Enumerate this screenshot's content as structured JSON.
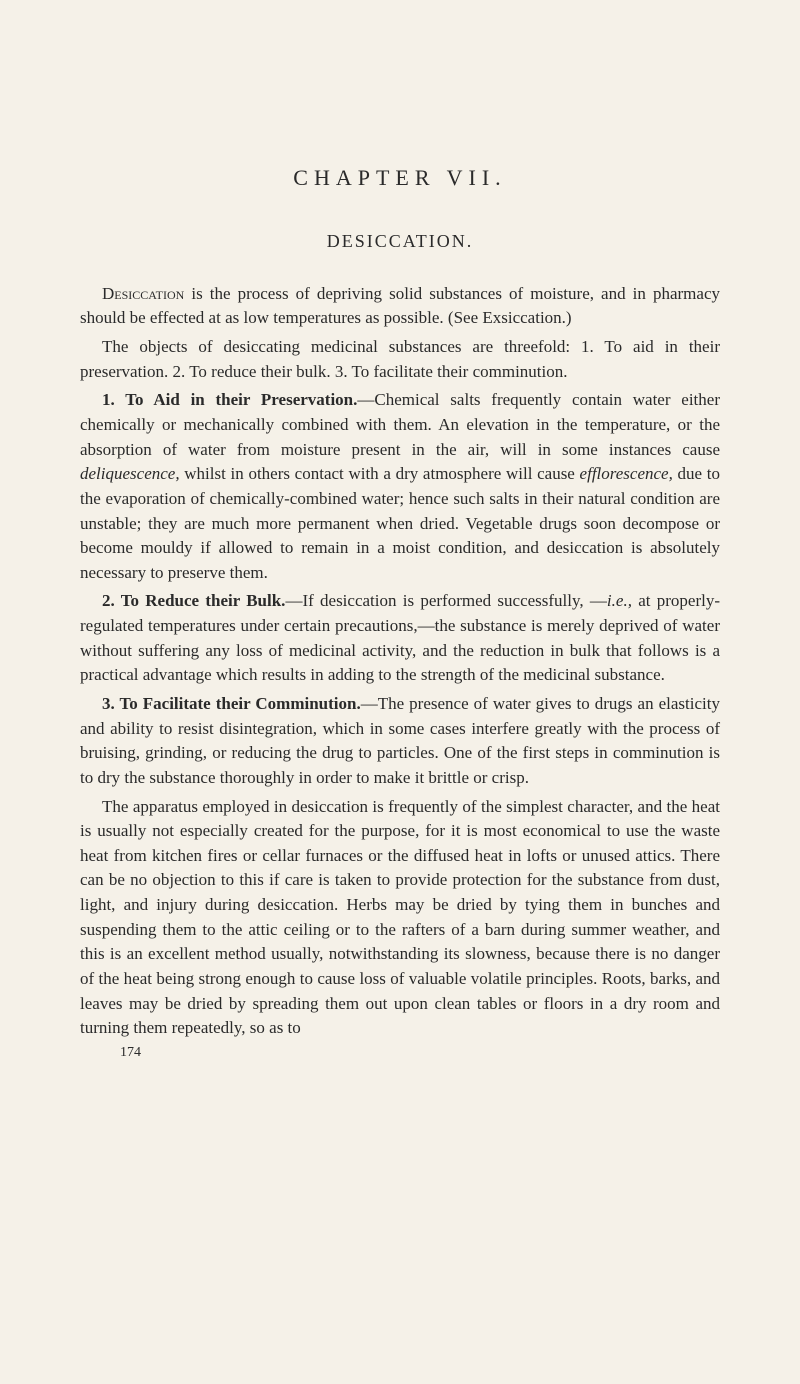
{
  "page": {
    "background_color": "#f5f1e8",
    "text_color": "#2a2a2a",
    "font_family": "Georgia, serif",
    "body_fontsize": 17,
    "title_fontsize": 22,
    "section_fontsize": 18
  },
  "chapter_title": "CHAPTER VII.",
  "section_title": "DESICCATION.",
  "paragraphs": {
    "p1_lead": "Desiccation",
    "p1_rest": " is the process of depriving solid substances of moisture, and in pharmacy should be effected at as low temperatures as possible. (See Exsiccation.)",
    "p2": "The objects of desiccating medicinal substances are threefold: 1. To aid in their preservation. 2. To reduce their bulk. 3. To facilitate their comminution.",
    "p3_num": "1. To Aid in their Preservation.",
    "p3_body_a": "—Chemical salts frequently contain water either chemically or mechanically combined with them. An elevation in the temperature, or the absorption of water from moisture present in the air, will in some instances cause ",
    "p3_italic_a": "deliquescence,",
    "p3_body_b": " whilst in others contact with a dry atmosphere will cause ",
    "p3_italic_b": "efflorescence,",
    "p3_body_c": " due to the evaporation of chemically-combined water; hence such salts in their natural condition are unstable; they are much more permanent when dried. Vegetable drugs soon decompose or become mouldy if allowed to remain in a moist condition, and desiccation is absolutely necessary to preserve them.",
    "p4_num": "2. To Reduce their Bulk.",
    "p4_body_a": "—If desiccation is performed successfully, —",
    "p4_italic": "i.e.,",
    "p4_body_b": " at properly-regulated temperatures under certain precautions,—the substance is merely deprived of water without suffering any loss of medicinal activity, and the reduction in bulk that follows is a practical advantage which results in adding to the strength of the medicinal substance.",
    "p5_num": "3. To Facilitate their Comminution.",
    "p5_body": "—The presence of water gives to drugs an elasticity and ability to resist disintegration, which in some cases interfere greatly with the process of bruising, grinding, or reducing the drug to particles. One of the first steps in comminution is to dry the substance thoroughly in order to make it brittle or crisp.",
    "p6": "The apparatus employed in desiccation is frequently of the simplest character, and the heat is usually not especially created for the purpose, for it is most economical to use the waste heat from kitchen fires or cellar furnaces or the diffused heat in lofts or unused attics. There can be no objection to this if care is taken to provide protection for the substance from dust, light, and injury during desiccation. Herbs may be dried by tying them in bunches and suspending them to the attic ceiling or to the rafters of a barn during summer weather, and this is an excellent method usually, notwithstanding its slowness, because there is no danger of the heat being strong enough to cause loss of valuable volatile principles. Roots, barks, and leaves may be dried by spreading them out upon clean tables or floors in a dry room and turning them repeatedly, so as to"
  },
  "page_number": "174"
}
